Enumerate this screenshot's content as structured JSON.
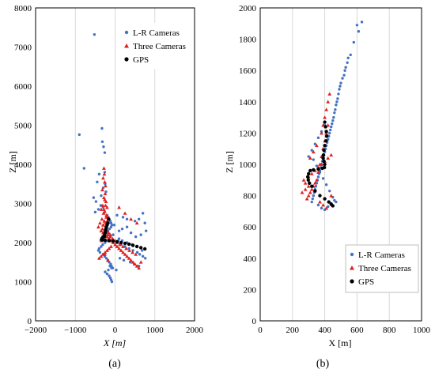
{
  "chart_data": [
    {
      "panel_label": "(a)",
      "type": "scatter",
      "xlabel": "X [m]",
      "ylabel": "Z [m]",
      "xlim": [
        -2000,
        2000
      ],
      "ylim": [
        0,
        8000
      ],
      "x_ticks": [
        -2000,
        -1000,
        0,
        1000,
        2000
      ],
      "y_ticks": [
        0,
        1000,
        2000,
        3000,
        4000,
        5000,
        6000,
        7000,
        8000
      ],
      "grid": "vertical",
      "legend_position": "top-right",
      "series": [
        {
          "name": "L-R Cameras",
          "marker": "circle",
          "color": "#4472C4",
          "x": [
            -520,
            -900,
            -330,
            -320,
            -290,
            -260,
            -780,
            -260,
            -400,
            -450,
            -250,
            -300,
            -230,
            -350,
            -540,
            -480,
            -360,
            -300,
            -420,
            -500,
            -280,
            -200,
            -170,
            -150,
            -120,
            -100,
            -80,
            50,
            200,
            300,
            500,
            600,
            700,
            750,
            780,
            650,
            520,
            400,
            300,
            180,
            100,
            -50,
            -120,
            -160,
            -200,
            -250,
            -310,
            -350,
            -400,
            -420,
            -380,
            -300,
            -260,
            -220,
            -180,
            -150,
            -110,
            -90,
            -60,
            80,
            150,
            250,
            350,
            450,
            560,
            620,
            700,
            760,
            420,
            300,
            180,
            100,
            -20,
            -100,
            -140,
            -180,
            -220,
            -260,
            -300,
            -330,
            -360,
            -250,
            -200,
            -150,
            -120,
            -100,
            -80,
            -130,
            -170,
            -90,
            30,
            120,
            220,
            380,
            480,
            600,
            680
          ],
          "y": [
            7320,
            4760,
            4920,
            4580,
            4450,
            4300,
            3900,
            3800,
            3750,
            3550,
            3500,
            3400,
            3300,
            3200,
            3150,
            3050,
            2950,
            2900,
            2850,
            2780,
            2750,
            2700,
            2650,
            2600,
            2550,
            2500,
            2450,
            2700,
            2650,
            2600,
            2550,
            2600,
            2750,
            2500,
            2300,
            2200,
            2150,
            2250,
            2400,
            2350,
            2300,
            2200,
            2150,
            2100,
            2050,
            2000,
            1950,
            1900,
            1850,
            1800,
            1750,
            1700,
            1650,
            1600,
            1550,
            1500,
            1450,
            1400,
            1350,
            2050,
            1950,
            1900,
            1850,
            1800,
            1750,
            1700,
            1650,
            1600,
            1950,
            2000,
            2050,
            2100,
            2450,
            2400,
            2350,
            2300,
            2250,
            2200,
            2150,
            2100,
            2050,
            1250,
            1200,
            1150,
            1100,
            1050,
            1000,
            1400,
            1300,
            1350,
            1300,
            1600,
            1550,
            1500,
            1450,
            1400,
            1800
          ]
        },
        {
          "name": "Three Cameras",
          "marker": "triangle",
          "color": "#E02020",
          "x": [
            -280,
            -270,
            -300,
            -260,
            -240,
            -320,
            -250,
            -280,
            -230,
            -310,
            -200,
            -350,
            -260,
            -290,
            -220,
            -180,
            -330,
            -270,
            -240,
            -300,
            -210,
            -250,
            -200,
            -160,
            -120,
            -380,
            -420,
            -350,
            -300,
            -250,
            -200,
            -150,
            -100,
            -50,
            0,
            50,
            100,
            150,
            200,
            250,
            300,
            350,
            400,
            450,
            500,
            550,
            600,
            -100,
            -150,
            -200,
            -250,
            -300,
            -350,
            -400,
            -180,
            -120,
            -60,
            0,
            60,
            120,
            200,
            280,
            360,
            440,
            520,
            -260,
            -240,
            -220,
            -280,
            -300,
            -200,
            -320,
            -340,
            -260,
            -180,
            100,
            250,
            400,
            550,
            650
          ],
          "y": [
            3900,
            3750,
            3650,
            3550,
            3450,
            3350,
            3250,
            3150,
            3050,
            2950,
            2900,
            2850,
            2800,
            2750,
            2700,
            2650,
            2600,
            2550,
            2500,
            2450,
            2400,
            2350,
            2300,
            2250,
            2200,
            2500,
            2400,
            2300,
            2250,
            2200,
            2150,
            2100,
            2050,
            2000,
            1950,
            1900,
            1850,
            1800,
            1750,
            1700,
            1650,
            1600,
            1550,
            1500,
            1450,
            1400,
            1350,
            1900,
            1850,
            1800,
            1750,
            1700,
            1650,
            1600,
            2200,
            2150,
            2100,
            2050,
            2000,
            1950,
            1900,
            1850,
            1800,
            1750,
            1700,
            3100,
            2950,
            2650,
            2850,
            2450,
            2550,
            2350,
            2050,
            1700,
            1550,
            2900,
            2750,
            2600,
            2500,
            1500
          ]
        },
        {
          "name": "GPS",
          "marker": "circle",
          "color": "#000000",
          "x": [
            -160,
            -180,
            -200,
            -220,
            -230,
            -240,
            -250,
            -260,
            -270,
            -300,
            -320,
            -330,
            -340,
            -320,
            -250,
            -150,
            -50,
            50,
            150,
            250,
            350,
            450,
            550,
            650,
            750
          ],
          "y": [
            2600,
            2500,
            2450,
            2400,
            2350,
            2300,
            2250,
            2200,
            2150,
            2150,
            2120,
            2100,
            2080,
            2070,
            2060,
            2050,
            2040,
            2020,
            2000,
            1980,
            1960,
            1930,
            1900,
            1870,
            1840
          ]
        }
      ]
    },
    {
      "panel_label": "(b)",
      "type": "scatter",
      "xlabel": "X [m]",
      "ylabel": "Z [m]",
      "xlim": [
        0,
        1000
      ],
      "ylim": [
        0,
        2000
      ],
      "x_ticks": [
        0,
        200,
        400,
        600,
        800,
        1000
      ],
      "y_ticks": [
        0,
        200,
        400,
        600,
        800,
        1000,
        1200,
        1400,
        1600,
        1800,
        2000
      ],
      "grid": "vertical",
      "legend_position": "bottom-right",
      "series": [
        {
          "name": "L-R Cameras",
          "marker": "circle",
          "color": "#4472C4",
          "x": [
            630,
            600,
            610,
            580,
            560,
            545,
            540,
            530,
            525,
            520,
            510,
            500,
            495,
            490,
            485,
            480,
            475,
            470,
            465,
            460,
            455,
            450,
            445,
            440,
            435,
            430,
            425,
            420,
            415,
            410,
            405,
            400,
            395,
            390,
            385,
            380,
            375,
            370,
            365,
            360,
            355,
            350,
            345,
            340,
            335,
            330,
            325,
            320,
            360,
            380,
            400,
            420,
            440,
            460,
            400,
            380,
            360,
            340,
            320,
            300,
            330,
            350,
            370,
            390,
            410,
            430,
            450,
            470
          ],
          "y": [
            1910,
            1890,
            1850,
            1780,
            1700,
            1680,
            1650,
            1620,
            1600,
            1570,
            1550,
            1520,
            1500,
            1480,
            1450,
            1420,
            1400,
            1380,
            1350,
            1330,
            1300,
            1280,
            1260,
            1240,
            1220,
            1200,
            1180,
            1160,
            1140,
            1120,
            1100,
            1080,
            1060,
            1040,
            1020,
            1000,
            980,
            960,
            940,
            920,
            900,
            880,
            860,
            840,
            820,
            800,
            780,
            760,
            740,
            720,
            710,
            730,
            750,
            770,
            1250,
            1210,
            1170,
            1130,
            1090,
            1050,
            1030,
            990,
            950,
            910,
            870,
            830,
            790,
            760
          ]
        },
        {
          "name": "Three Cameras",
          "marker": "triangle",
          "color": "#E02020",
          "x": [
            430,
            420,
            410,
            400,
            390,
            380,
            420,
            410,
            400,
            390,
            380,
            370,
            360,
            350,
            340,
            330,
            320,
            310,
            300,
            290,
            280,
            270,
            300,
            320,
            340,
            360,
            380,
            400,
            420,
            440,
            350,
            330,
            310,
            370,
            390,
            410,
            300,
            280,
            260,
            440
          ],
          "y": [
            1450,
            1400,
            1350,
            1300,
            1250,
            1200,
            1250,
            1200,
            1150,
            1100,
            1050,
            1000,
            950,
            900,
            880,
            860,
            840,
            820,
            800,
            780,
            880,
            900,
            920,
            940,
            960,
            980,
            1000,
            1020,
            1040,
            1060,
            1120,
            1080,
            1040,
            760,
            740,
            720,
            860,
            840,
            820,
            800
          ]
        },
        {
          "name": "GPS",
          "marker": "circle",
          "color": "#000000",
          "x": [
            400,
            405,
            410,
            412,
            408,
            400,
            395,
            392,
            390,
            395,
            400,
            398,
            385,
            360,
            330,
            310,
            300,
            295,
            298,
            305,
            320,
            340,
            370,
            400,
            425,
            440,
            450
          ],
          "y": [
            1270,
            1240,
            1210,
            1180,
            1150,
            1120,
            1090,
            1060,
            1040,
            1020,
            1000,
            980,
            975,
            970,
            965,
            960,
            940,
            920,
            900,
            880,
            860,
            830,
            800,
            780,
            760,
            745,
            735
          ]
        }
      ]
    }
  ]
}
